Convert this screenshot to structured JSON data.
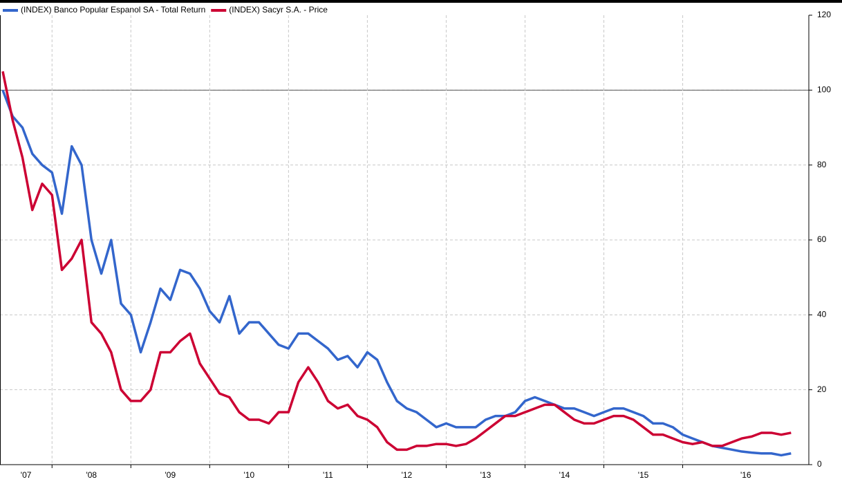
{
  "chart_data": {
    "type": "line",
    "x": [
      2007.375,
      2007.5,
      2007.625,
      2007.75,
      2007.875,
      2008,
      2008.125,
      2008.25,
      2008.375,
      2008.5,
      2008.625,
      2008.75,
      2008.875,
      2009,
      2009.125,
      2009.25,
      2009.375,
      2009.5,
      2009.625,
      2009.75,
      2009.875,
      2010,
      2010.125,
      2010.25,
      2010.375,
      2010.5,
      2010.625,
      2010.75,
      2010.875,
      2011,
      2011.125,
      2011.25,
      2011.375,
      2011.5,
      2011.625,
      2011.75,
      2011.875,
      2012,
      2012.125,
      2012.25,
      2012.375,
      2012.5,
      2012.625,
      2012.75,
      2012.875,
      2013,
      2013.125,
      2013.25,
      2013.375,
      2013.5,
      2013.625,
      2013.75,
      2013.875,
      2014,
      2014.125,
      2014.25,
      2014.375,
      2014.5,
      2014.625,
      2014.75,
      2014.875,
      2015,
      2015.125,
      2015.25,
      2015.375,
      2015.5,
      2015.625,
      2015.75,
      2015.875,
      2016,
      2016.125,
      2016.25,
      2016.375,
      2016.5,
      2016.625,
      2016.75,
      2016.875,
      2017,
      2017.125,
      2017.25,
      2017.375
    ],
    "series": [
      {
        "name": "(INDEX) Banco Popular Espanol SA - Total Return",
        "color": "#3366cc",
        "values": [
          100,
          93,
          90,
          83,
          80,
          78,
          67,
          85,
          80,
          60,
          51,
          60,
          43,
          40,
          30,
          38,
          47,
          44,
          52,
          51,
          47,
          41,
          38,
          45,
          35,
          38,
          38,
          35,
          32,
          31,
          35,
          35,
          33,
          31,
          28,
          29,
          26,
          30,
          28,
          22,
          17,
          15,
          14,
          12,
          10,
          11,
          10,
          10,
          10,
          12,
          13,
          13,
          14,
          17,
          18,
          17,
          16,
          15,
          15,
          14,
          13,
          14,
          15,
          15,
          14,
          13,
          11,
          11,
          10,
          8,
          7,
          6,
          5,
          4.5,
          4,
          3.5,
          3.2,
          3,
          3,
          2.5,
          3
        ]
      },
      {
        "name": "(INDEX) Sacyr S.A. - Price",
        "color": "#cc0033",
        "values": [
          105,
          92,
          82,
          68,
          75,
          72,
          52,
          55,
          60,
          38,
          35,
          30,
          20,
          17,
          17,
          20,
          30,
          30,
          33,
          35,
          27,
          23,
          19,
          18,
          14,
          12,
          12,
          11,
          14,
          14,
          22,
          26,
          22,
          17,
          15,
          16,
          13,
          12,
          10,
          6,
          4,
          4,
          5,
          5,
          5.5,
          5.5,
          5,
          5.5,
          7,
          9,
          11,
          13,
          13,
          14,
          15,
          16,
          16,
          14,
          12,
          11,
          11,
          12,
          13,
          13,
          12,
          10,
          8,
          8,
          7,
          6,
          5.5,
          6,
          5,
          5,
          6,
          7,
          7.5,
          8.5,
          8.5,
          8,
          8.5
        ]
      }
    ],
    "xlim": [
      2007.34,
      2017.6
    ],
    "xticks": [
      {
        "value": 2007,
        "label": "'07"
      },
      {
        "value": 2008,
        "label": "'08"
      },
      {
        "value": 2009,
        "label": "'09"
      },
      {
        "value": 2010,
        "label": "'10"
      },
      {
        "value": 2011,
        "label": "'11"
      },
      {
        "value": 2012,
        "label": "'12"
      },
      {
        "value": 2013,
        "label": "'13"
      },
      {
        "value": 2014,
        "label": "'14"
      },
      {
        "value": 2015,
        "label": "'15"
      },
      {
        "value": 2016,
        "label": "'16"
      }
    ],
    "ylim": [
      0,
      120
    ],
    "yticks": [
      0,
      20,
      40,
      60,
      80,
      100,
      120
    ],
    "baseline": 100,
    "grid": true,
    "legend": "top-left",
    "y_axis_side": "right"
  }
}
